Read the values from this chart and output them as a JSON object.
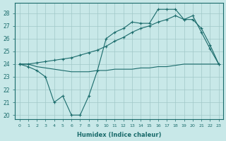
{
  "xlabel": "Humidex (Indice chaleur)",
  "bg_color": "#c8e8e8",
  "line_color": "#1a6b6b",
  "grid_color": "#a0c8c8",
  "xlim": [
    -0.5,
    23.5
  ],
  "ylim": [
    19.7,
    28.8
  ],
  "yticks": [
    20,
    21,
    22,
    23,
    24,
    25,
    26,
    27,
    28
  ],
  "xticks": [
    0,
    1,
    2,
    3,
    4,
    5,
    6,
    7,
    8,
    9,
    10,
    11,
    12,
    13,
    14,
    15,
    16,
    17,
    18,
    19,
    20,
    21,
    22,
    23
  ],
  "line1_x": [
    0,
    1,
    2,
    3,
    4,
    5,
    6,
    7,
    8,
    9,
    10,
    11,
    12,
    13,
    14,
    15,
    16,
    17,
    18,
    19,
    20,
    21,
    22,
    23
  ],
  "line1_y": [
    24.0,
    24.0,
    23.8,
    23.7,
    23.6,
    23.5,
    23.4,
    23.4,
    23.4,
    23.5,
    23.5,
    23.6,
    23.6,
    23.6,
    23.7,
    23.7,
    23.8,
    23.8,
    23.9,
    24.0,
    24.0,
    24.0,
    24.0,
    24.0
  ],
  "line2_x": [
    0,
    1,
    2,
    3,
    4,
    5,
    6,
    7,
    8,
    9,
    10,
    11,
    12,
    13,
    14,
    15,
    16,
    17,
    18,
    19,
    20,
    21,
    22,
    23
  ],
  "line2_y": [
    24.0,
    24.0,
    24.1,
    24.2,
    24.3,
    24.4,
    24.5,
    24.7,
    24.9,
    25.1,
    25.4,
    25.8,
    26.1,
    26.5,
    26.8,
    27.0,
    27.3,
    27.5,
    27.8,
    27.5,
    27.5,
    26.8,
    25.5,
    24.0
  ],
  "line3_x": [
    0,
    1,
    2,
    3,
    4,
    5,
    6,
    7,
    8,
    9,
    10,
    11,
    12,
    13,
    14,
    15,
    16,
    17,
    18,
    19,
    20,
    21,
    22,
    23
  ],
  "line3_y": [
    24.0,
    23.8,
    23.5,
    23.0,
    21.0,
    21.5,
    20.0,
    20.0,
    21.5,
    23.5,
    26.0,
    26.5,
    26.8,
    27.3,
    27.2,
    27.2,
    28.3,
    28.3,
    28.3,
    27.5,
    27.8,
    26.5,
    25.2,
    24.0
  ]
}
